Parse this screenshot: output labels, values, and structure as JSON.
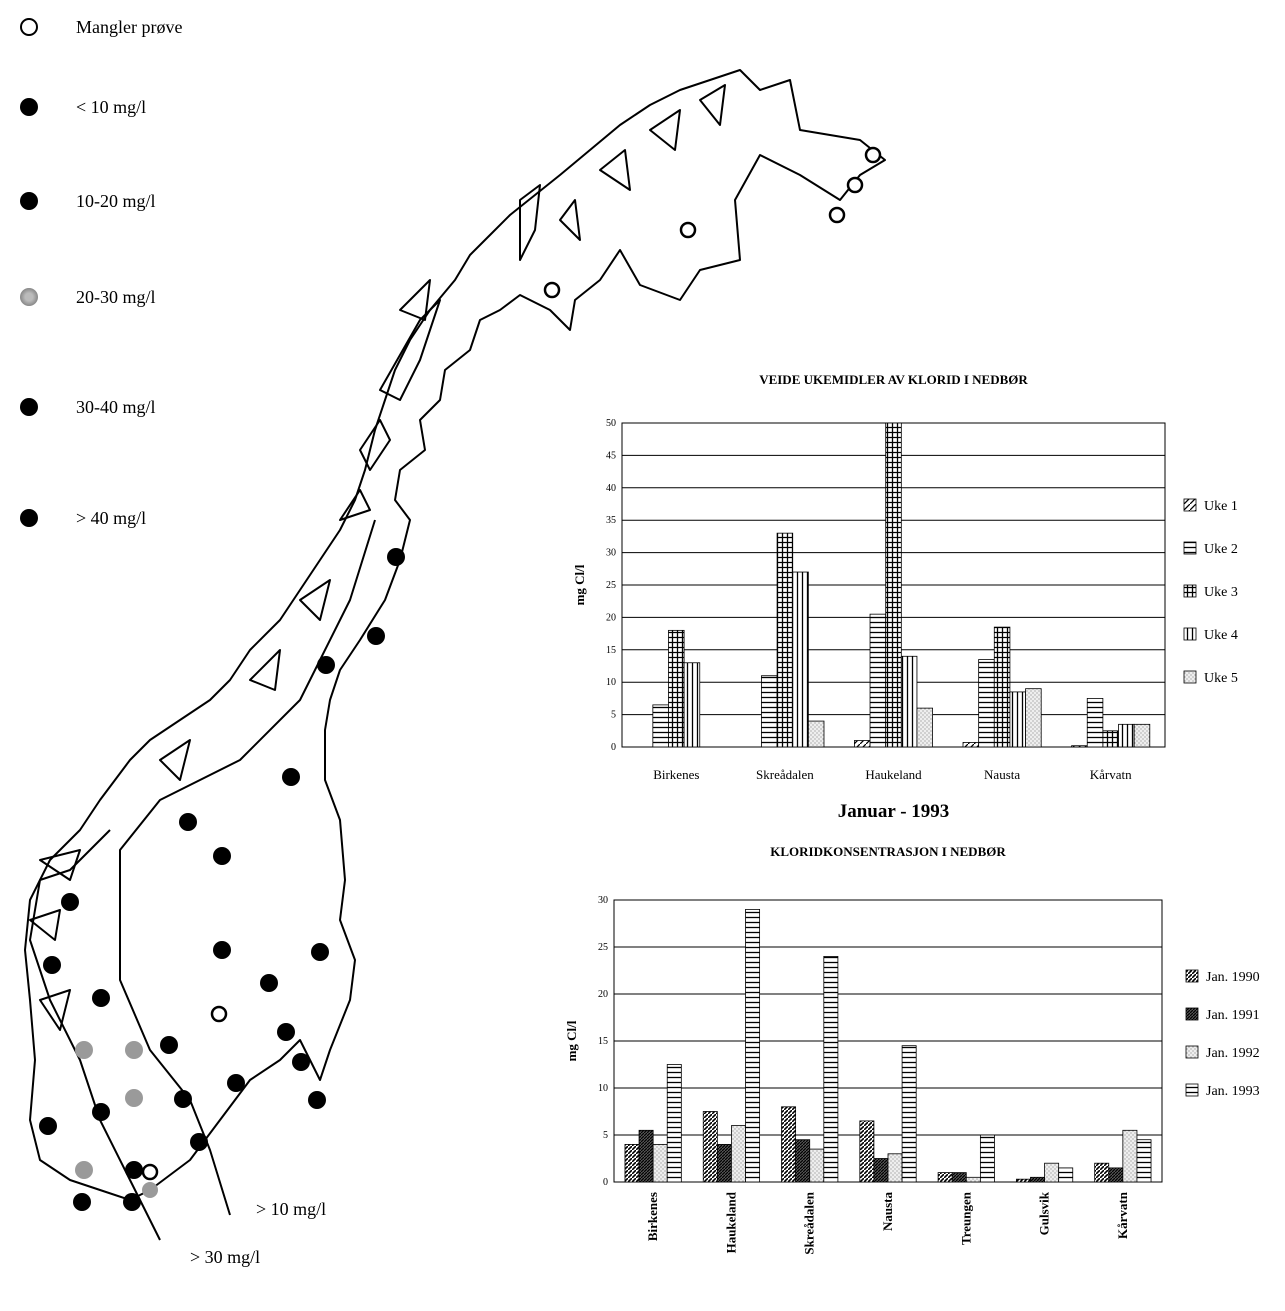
{
  "map_legend": {
    "items": [
      {
        "label": "Mangler prøve",
        "style": "open"
      },
      {
        "label": "< 10 mg/l",
        "style": "black"
      },
      {
        "label": "10-20 mg/l",
        "style": "black"
      },
      {
        "label": "20-30 mg/l",
        "style": "grey"
      },
      {
        "label": "30-40 mg/l",
        "style": "black"
      },
      {
        "label": "> 40 mg/l",
        "style": "black"
      }
    ]
  },
  "map_labels": {
    "line_10": "> 10 mg/l",
    "line_30": "> 30 mg/l"
  },
  "colors": {
    "stroke": "#000000",
    "grey_dot": "#9a9a9a",
    "light_fill": "#e6e6e6"
  },
  "chart_data": [
    {
      "type": "bar",
      "title": "VEIDE UKEMIDLER AV KLORID I NEDBØR",
      "xlabel": "Januar - 1993",
      "ylabel": "mg Cl/l",
      "ylim": [
        0,
        50
      ],
      "yticks": [
        0,
        5,
        10,
        15,
        20,
        25,
        30,
        35,
        40,
        45,
        50
      ],
      "grid": true,
      "legend_position": "right",
      "categories": [
        "Birkenes",
        "Skreådalen",
        "Haukeland",
        "Nausta",
        "Kårvatn"
      ],
      "series": [
        {
          "name": "Uke 1",
          "pattern": "diag",
          "values": [
            0,
            0,
            1,
            0.7,
            0.2
          ]
        },
        {
          "name": "Uke 2",
          "pattern": "hlines",
          "values": [
            6.5,
            11,
            20.5,
            13.5,
            7.5
          ]
        },
        {
          "name": "Uke 3",
          "pattern": "grid",
          "values": [
            18,
            33,
            50,
            18.5,
            2.5
          ]
        },
        {
          "name": "Uke 4",
          "pattern": "vlines",
          "values": [
            13,
            27,
            14,
            8.5,
            3.5
          ]
        },
        {
          "name": "Uke 5",
          "pattern": "dots",
          "values": [
            0,
            4,
            6,
            9,
            3.5
          ]
        }
      ]
    },
    {
      "type": "bar",
      "title": "KLORIDKONSENTRASJON I NEDBØR",
      "xlabel": "",
      "ylabel": "mg Cl/l",
      "ylim": [
        0,
        30
      ],
      "yticks": [
        0,
        5,
        10,
        15,
        20,
        25,
        30
      ],
      "grid": true,
      "legend_position": "right",
      "categories": [
        "Birkenes",
        "Haukeland",
        "Skreådalen",
        "Nausta",
        "Treungen",
        "Gulsvik",
        "Kårvatn"
      ],
      "series": [
        {
          "name": "Jan. 1990",
          "pattern": "diag-dense",
          "values": [
            4,
            7.5,
            8,
            6.5,
            1,
            0.3,
            2
          ]
        },
        {
          "name": "Jan. 1991",
          "pattern": "diag-dense2",
          "values": [
            5.5,
            4,
            4.5,
            2.5,
            1,
            0.5,
            1.5
          ]
        },
        {
          "name": "Jan. 1992",
          "pattern": "dots",
          "values": [
            4,
            6,
            3.5,
            3,
            0.5,
            2,
            5.5
          ]
        },
        {
          "name": "Jan. 1993",
          "pattern": "hlines",
          "values": [
            12.5,
            29,
            24,
            14.5,
            5,
            1.5,
            4.5
          ]
        }
      ]
    }
  ]
}
